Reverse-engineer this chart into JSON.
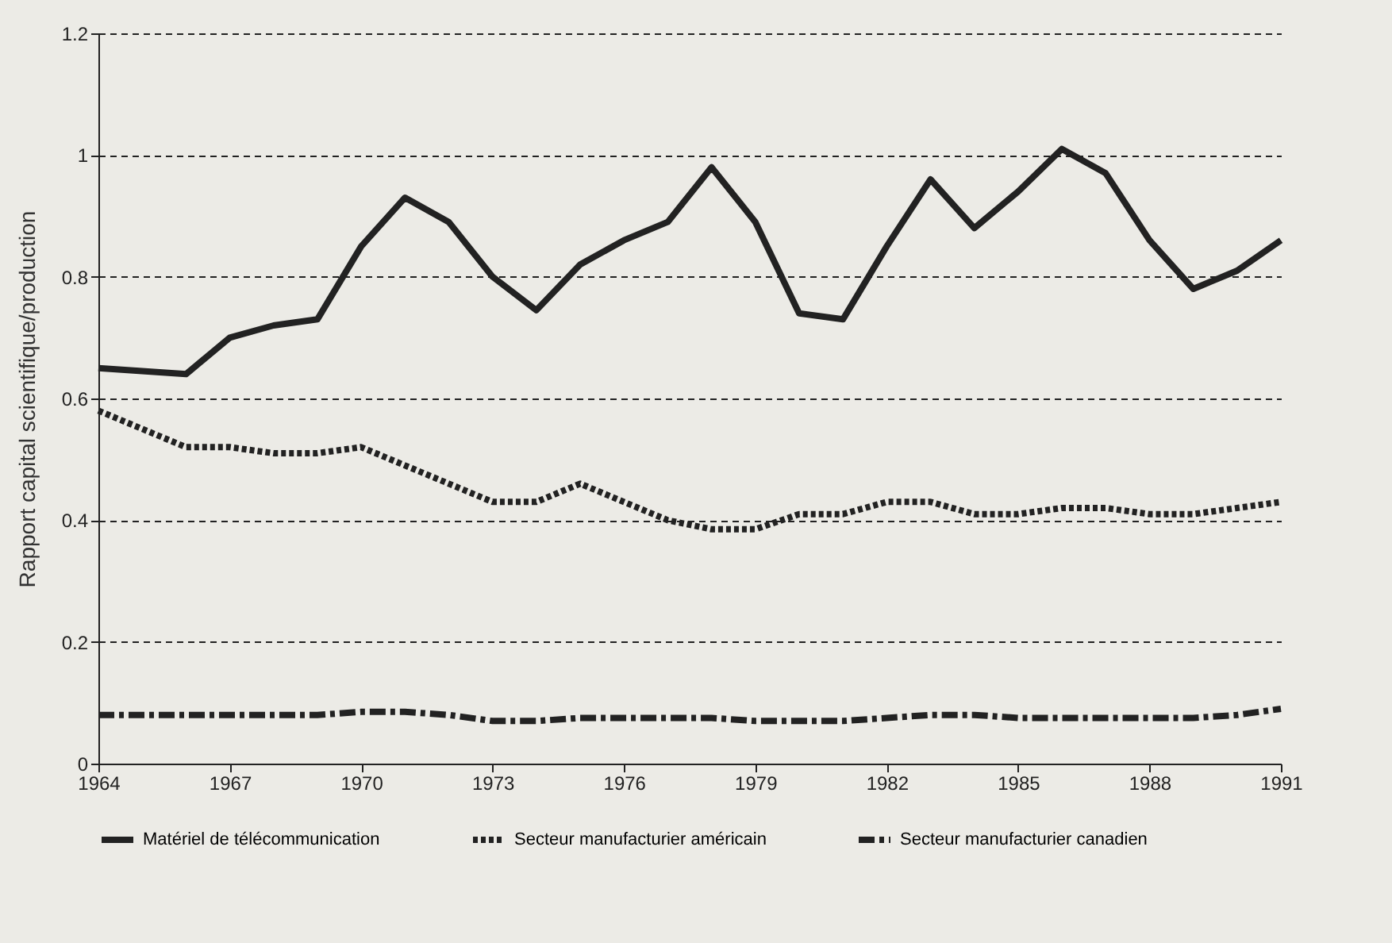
{
  "chart_data": {
    "type": "line",
    "ylabel": "Rapport capital scientifique/production",
    "x": [
      1964,
      1965,
      1966,
      1967,
      1968,
      1969,
      1970,
      1971,
      1972,
      1973,
      1974,
      1975,
      1976,
      1977,
      1978,
      1979,
      1980,
      1981,
      1982,
      1983,
      1984,
      1985,
      1986,
      1987,
      1988,
      1989,
      1990,
      1991
    ],
    "series": [
      {
        "name": "Matériel de télécommunication",
        "color": "#222222",
        "line_style": "solid",
        "values": [
          0.65,
          0.645,
          0.64,
          0.7,
          0.72,
          0.73,
          0.85,
          0.93,
          0.89,
          0.8,
          0.745,
          0.82,
          0.86,
          0.89,
          0.98,
          0.89,
          0.74,
          0.73,
          0.85,
          0.96,
          0.88,
          0.94,
          1.01,
          0.97,
          0.86,
          0.78,
          0.81,
          0.86
        ]
      },
      {
        "name": "Secteur manufacturier américain",
        "color": "#222222",
        "line_style": "dotted",
        "values": [
          0.58,
          0.55,
          0.52,
          0.52,
          0.51,
          0.51,
          0.52,
          0.49,
          0.46,
          0.43,
          0.43,
          0.46,
          0.43,
          0.4,
          0.385,
          0.385,
          0.41,
          0.41,
          0.43,
          0.43,
          0.41,
          0.41,
          0.42,
          0.42,
          0.41,
          0.41,
          0.42,
          0.43
        ]
      },
      {
        "name": "Secteur manufacturier canadien",
        "color": "#222222",
        "line_style": "dashdot",
        "values": [
          0.08,
          0.08,
          0.08,
          0.08,
          0.08,
          0.08,
          0.085,
          0.085,
          0.08,
          0.07,
          0.07,
          0.075,
          0.075,
          0.075,
          0.075,
          0.07,
          0.07,
          0.07,
          0.075,
          0.08,
          0.08,
          0.075,
          0.075,
          0.075,
          0.075,
          0.075,
          0.08,
          0.09
        ]
      }
    ],
    "xlim": [
      1964,
      1991
    ],
    "xticks": [
      1964,
      1967,
      1970,
      1973,
      1976,
      1979,
      1982,
      1985,
      1988,
      1991
    ],
    "ylim": [
      0,
      1.2
    ],
    "yticks": [
      0,
      0.2,
      0.4,
      0.6,
      0.8,
      1,
      1.2
    ],
    "grid": "y",
    "legend": "bottom"
  }
}
